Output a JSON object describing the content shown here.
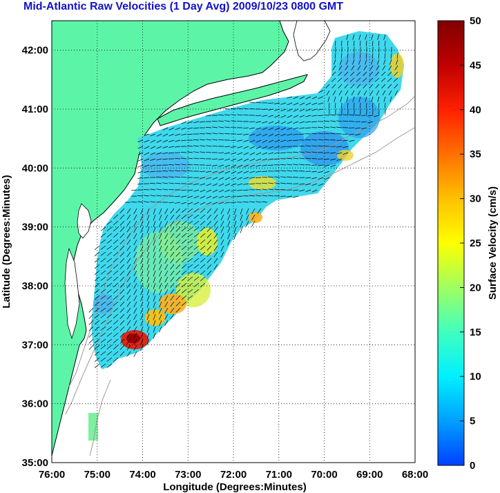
{
  "title": "Mid-Atlantic Raw Velocities (1 Day Avg) 2009/10/23 0800 GMT",
  "map": {
    "xlabel": "Longitude (Degrees:Minutes)",
    "ylabel": "Latitude (Degrees:Minutes)",
    "lon_ticks": [
      "76:00",
      "75:00",
      "74:00",
      "73:00",
      "72:00",
      "71:00",
      "70:00",
      "69:00",
      "68:00"
    ],
    "lat_ticks": [
      "35:00",
      "36:00",
      "37:00",
      "38:00",
      "39:00",
      "40:00",
      "41:00",
      "42:00"
    ],
    "lon_range": [
      -76,
      -68
    ],
    "lat_range": [
      35,
      42.5
    ],
    "grid": "dotted",
    "colors": {
      "land": "#5cf5a8",
      "coast": "#000000",
      "bathymetry": "#999999",
      "vectors": "#000000"
    }
  },
  "colorbar": {
    "label": "Surface Velocity (cm/s)",
    "ticks": [
      "0",
      "5",
      "10",
      "15",
      "20",
      "25",
      "30",
      "35",
      "40",
      "45",
      "50"
    ],
    "range": [
      0,
      50
    ],
    "palette": [
      "#0040ff",
      "#00a0ff",
      "#00f0ff",
      "#40ffc0",
      "#a0ff60",
      "#ffff00",
      "#ffc000",
      "#ff7000",
      "#ff2000",
      "#c00000",
      "#800000"
    ]
  }
}
